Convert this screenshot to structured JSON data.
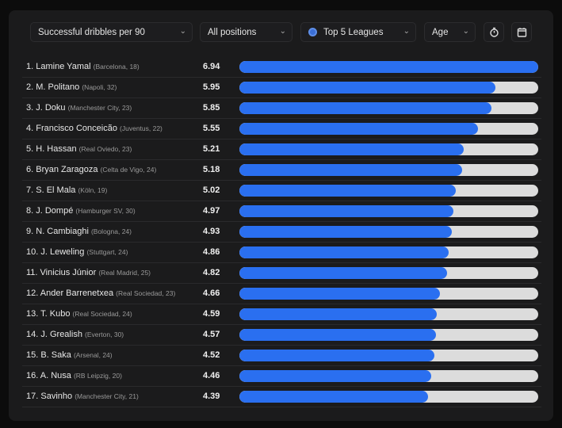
{
  "filters": {
    "metric": "Successful dribbles per 90",
    "position": "All positions",
    "league": "Top 5 Leagues",
    "age": "Age"
  },
  "colors": {
    "bar": "#2a6ff0",
    "track": "#dcdcdc"
  },
  "max_value": 6.94,
  "rows": [
    {
      "rank": "1.",
      "name": "Lamine Yamal",
      "meta": "(Barcelona, 18)",
      "value": "6.94"
    },
    {
      "rank": "2.",
      "name": "M. Politano",
      "meta": "(Napoli, 32)",
      "value": "5.95"
    },
    {
      "rank": "3.",
      "name": "J. Doku",
      "meta": "(Manchester City, 23)",
      "value": "5.85"
    },
    {
      "rank": "4.",
      "name": "Francisco Conceicão",
      "meta": "(Juventus, 22)",
      "value": "5.55"
    },
    {
      "rank": "5.",
      "name": "H. Hassan",
      "meta": "(Real Oviedo, 23)",
      "value": "5.21"
    },
    {
      "rank": "6.",
      "name": "Bryan Zaragoza",
      "meta": "(Celta de Vigo, 24)",
      "value": "5.18"
    },
    {
      "rank": "7.",
      "name": "S. El Mala",
      "meta": "(Köln, 19)",
      "value": "5.02"
    },
    {
      "rank": "8.",
      "name": "J. Dompé",
      "meta": "(Hamburger SV, 30)",
      "value": "4.97"
    },
    {
      "rank": "9.",
      "name": "N. Cambiaghi",
      "meta": "(Bologna, 24)",
      "value": "4.93"
    },
    {
      "rank": "10.",
      "name": "J. Leweling",
      "meta": "(Stuttgart, 24)",
      "value": "4.86"
    },
    {
      "rank": "11.",
      "name": "Vinicius Júnior",
      "meta": "(Real Madrid, 25)",
      "value": "4.82"
    },
    {
      "rank": "12.",
      "name": "Ander Barrenetxea",
      "meta": "(Real Sociedad, 23)",
      "value": "4.66"
    },
    {
      "rank": "13.",
      "name": "T. Kubo",
      "meta": "(Real Sociedad, 24)",
      "value": "4.59"
    },
    {
      "rank": "14.",
      "name": "J. Grealish",
      "meta": "(Everton, 30)",
      "value": "4.57"
    },
    {
      "rank": "15.",
      "name": "B. Saka",
      "meta": "(Arsenal, 24)",
      "value": "4.52"
    },
    {
      "rank": "16.",
      "name": "A. Nusa",
      "meta": "(RB Leipzig, 20)",
      "value": "4.46"
    },
    {
      "rank": "17.",
      "name": "Savinho",
      "meta": "(Manchester City, 21)",
      "value": "4.39"
    }
  ]
}
